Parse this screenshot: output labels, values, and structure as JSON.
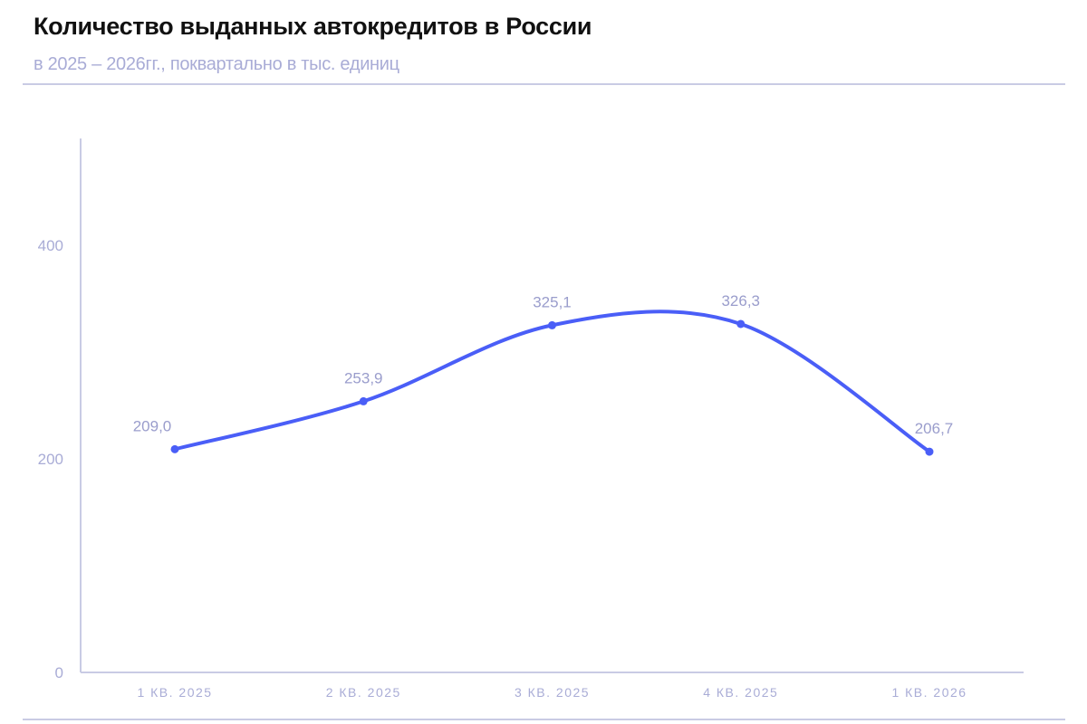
{
  "chart_data": {
    "type": "line",
    "title": "Количество выданных автокредитов в России",
    "subtitle": "в 2025 – 2026гг., поквартально в тыс. единиц",
    "categories": [
      "1 КВ. 2025",
      "2 КВ. 2025",
      "3 КВ. 2025",
      "4 КВ. 2025",
      "1 КВ. 2026"
    ],
    "values": [
      209.0,
      253.9,
      325.1,
      326.3,
      206.7
    ],
    "data_labels": [
      "209,0",
      "253,9",
      "325,1",
      "326,3",
      "206,7"
    ],
    "yticks": [
      0,
      200,
      400
    ],
    "ytick_labels": [
      "0",
      "200",
      "400"
    ],
    "ylim": [
      0,
      500
    ],
    "smooth": true,
    "grid": false,
    "line_color": "#4a5ef7",
    "text_color": "#a9acd6"
  }
}
